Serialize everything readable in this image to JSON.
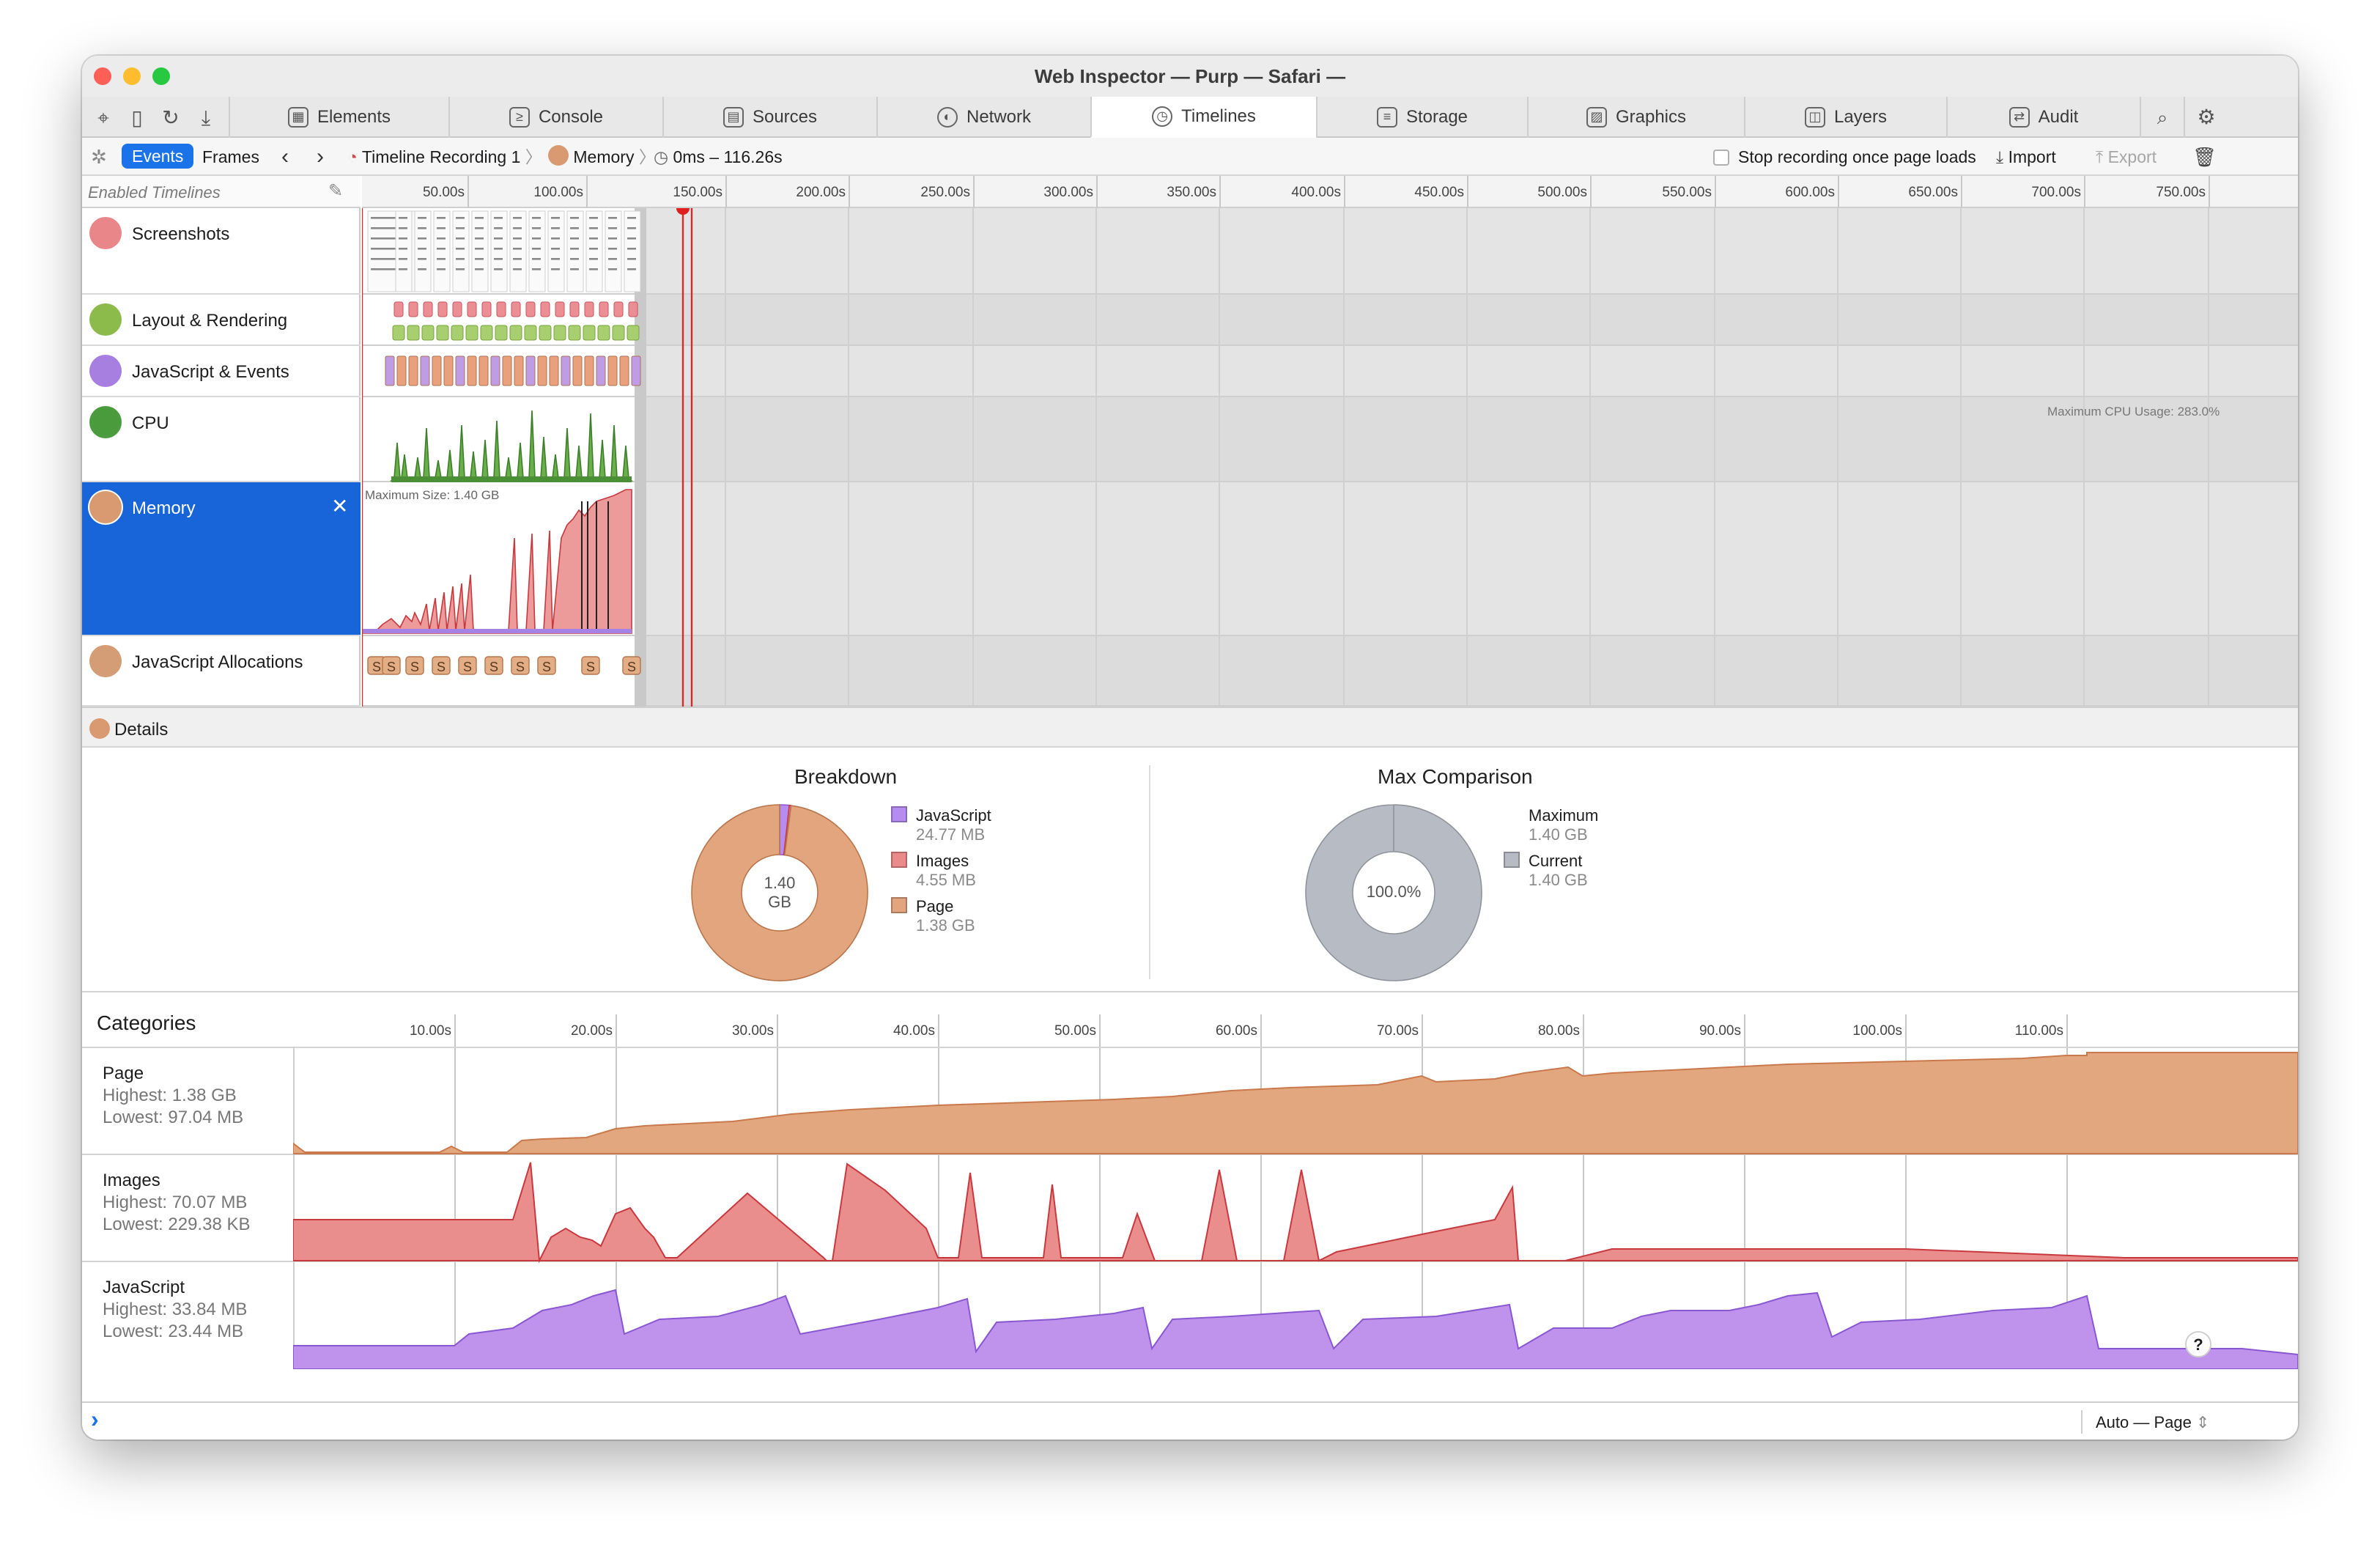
{
  "window": {
    "title": "Web Inspector — Purp — Safari —",
    "light_colors": [
      "#fe5f57",
      "#febc2e",
      "#28c840"
    ]
  },
  "tabs": [
    {
      "label": "Elements",
      "icon": "elements-icon"
    },
    {
      "label": "Console",
      "icon": "console-icon"
    },
    {
      "label": "Sources",
      "icon": "sources-icon"
    },
    {
      "label": "Network",
      "icon": "network-icon"
    },
    {
      "label": "Timelines",
      "icon": "timelines-icon",
      "selected": true
    },
    {
      "label": "Storage",
      "icon": "storage-icon"
    },
    {
      "label": "Graphics",
      "icon": "graphics-icon"
    },
    {
      "label": "Layers",
      "icon": "layers-icon"
    },
    {
      "label": "Audit",
      "icon": "audit-icon"
    }
  ],
  "toolbar": {
    "events": "Events",
    "frames": "Frames",
    "recording": "Timeline Recording 1",
    "memory": "Memory",
    "range": "0ms – 116.26s",
    "stop_recording": "Stop recording once page loads",
    "import": "Import",
    "export": "Export"
  },
  "overview": {
    "enabled_timelines": "Enabled Timelines",
    "ruler_labels": [
      "50.00s",
      "100.00s",
      "150.00s",
      "200.00s",
      "250.00s",
      "300.00s",
      "350.00s",
      "400.00s",
      "450.00s",
      "500.00s",
      "550.00s",
      "600.00s",
      "650.00s",
      "700.00s",
      "750.00s"
    ],
    "timelines": [
      {
        "label": "Screenshots",
        "color": "#e8868a"
      },
      {
        "label": "Layout & Rendering",
        "color": "#8cbb4b"
      },
      {
        "label": "JavaScript & Events",
        "color": "#a77fe0"
      },
      {
        "label": "CPU",
        "color": "#4a9b3b"
      },
      {
        "label": "Memory",
        "color": "#d99a72",
        "selected": true
      },
      {
        "label": "JavaScript Allocations",
        "color": "#d49d75"
      }
    ],
    "cpu_max": "Maximum CPU Usage: 283.0%",
    "memory_max": "Maximum Size: 1.40 GB",
    "alloc_marker": "S"
  },
  "details": {
    "label": "Details",
    "breakdown": {
      "title": "Breakdown",
      "center_value": "1.40",
      "center_unit": "GB",
      "legend": [
        {
          "name": "JavaScript",
          "value": "24.77 MB",
          "color": "#b78cf0"
        },
        {
          "name": "Images",
          "value": "4.55 MB",
          "color": "#ea8a8a"
        },
        {
          "name": "Page",
          "value": "1.38 GB",
          "color": "#e3a57e"
        }
      ]
    },
    "max_comparison": {
      "title": "Max Comparison",
      "center_value": "100.0%",
      "legend": [
        {
          "name": "Maximum",
          "value": "1.40 GB"
        },
        {
          "name": "Current",
          "value": "1.40 GB",
          "color": "#b7bcc4"
        }
      ]
    },
    "categories_title": "Categories",
    "categories_ruler": [
      "10.00s",
      "20.00s",
      "30.00s",
      "40.00s",
      "50.00s",
      "60.00s",
      "70.00s",
      "80.00s",
      "90.00s",
      "100.00s",
      "110.00s"
    ],
    "categories": [
      {
        "name": "Page",
        "highest": "Highest: 1.38 GB",
        "lowest": "Lowest: 97.04 MB",
        "color": "#e2a77f",
        "stroke": "#c9794b"
      },
      {
        "name": "Images",
        "highest": "Highest: 70.07 MB",
        "lowest": "Lowest: 229.38 KB",
        "color": "#ea8d8d",
        "stroke": "#c8393e"
      },
      {
        "name": "JavaScript",
        "highest": "Highest: 33.84 MB",
        "lowest": "Lowest: 23.44 MB",
        "color": "#bf93ec",
        "stroke": "#8a57d2"
      }
    ],
    "help": "?"
  },
  "footer": {
    "prompt": "›",
    "context": "Auto — Page"
  }
}
